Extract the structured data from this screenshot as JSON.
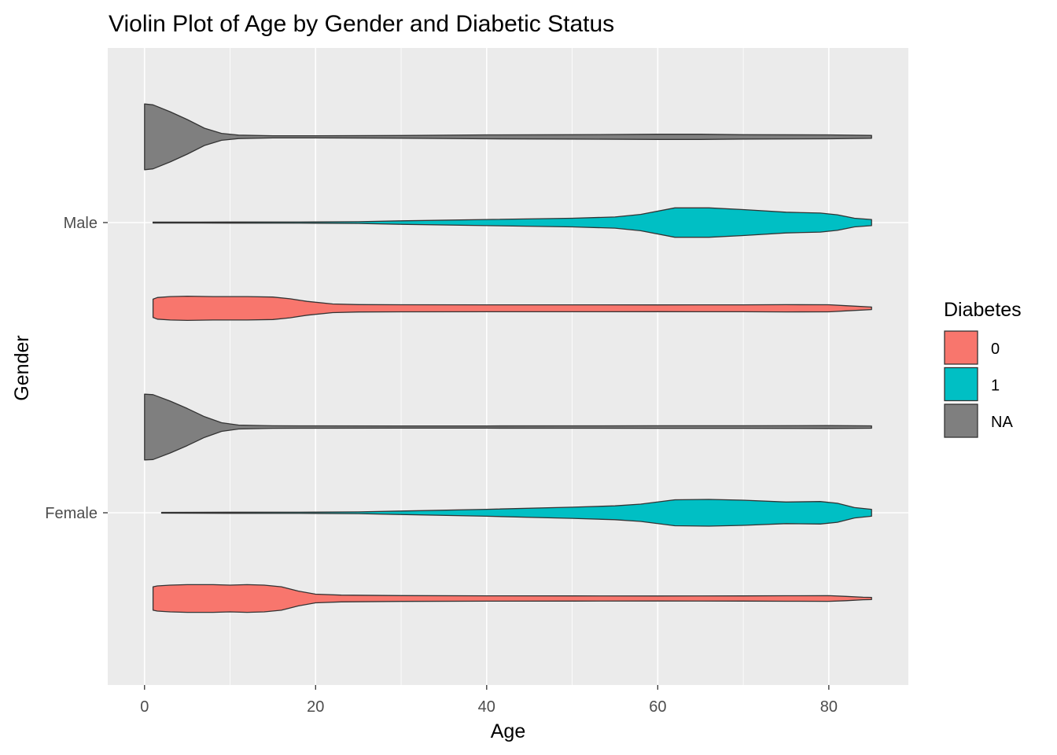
{
  "chart_data": {
    "type": "violin",
    "orientation": "horizontal",
    "title": "Violin Plot of Age by Gender and Diabetic Status",
    "xlabel": "Age",
    "ylabel": "Gender",
    "xlim": [
      -4.3,
      89.3
    ],
    "x_ticks": [
      0,
      20,
      40,
      60,
      80
    ],
    "x_tick_labels": [
      "0",
      "20",
      "40",
      "60",
      "80"
    ],
    "categories": [
      "Female",
      "Male"
    ],
    "grid": true,
    "background": "#ebebeb",
    "legend": {
      "title": "Diabetes",
      "position": "right",
      "entries": [
        {
          "label": "0",
          "color": "#f8766d"
        },
        {
          "label": "1",
          "color": "#00bfc4"
        },
        {
          "label": "NA",
          "color": "#7f7f7f"
        }
      ]
    },
    "violins": [
      {
        "category": "Female",
        "diabetes": "0",
        "color": "#f8766d",
        "profile": [
          [
            1,
            0.27
          ],
          [
            1.5,
            0.29
          ],
          [
            3,
            0.31
          ],
          [
            5,
            0.32
          ],
          [
            8,
            0.32
          ],
          [
            10,
            0.31
          ],
          [
            12,
            0.32
          ],
          [
            14,
            0.31
          ],
          [
            16,
            0.27
          ],
          [
            18,
            0.17
          ],
          [
            20,
            0.1
          ],
          [
            23,
            0.078
          ],
          [
            30,
            0.068
          ],
          [
            40,
            0.062
          ],
          [
            50,
            0.06
          ],
          [
            60,
            0.058
          ],
          [
            70,
            0.06
          ],
          [
            75,
            0.064
          ],
          [
            80,
            0.066
          ],
          [
            82,
            0.05
          ],
          [
            84,
            0.03
          ],
          [
            85,
            0.025
          ]
        ]
      },
      {
        "category": "Female",
        "diabetes": "1",
        "color": "#00bfc4",
        "profile": [
          [
            2,
            0.01
          ],
          [
            10,
            0.012
          ],
          [
            20,
            0.014
          ],
          [
            25,
            0.02
          ],
          [
            30,
            0.04
          ],
          [
            40,
            0.08
          ],
          [
            50,
            0.13
          ],
          [
            55,
            0.16
          ],
          [
            58,
            0.2
          ],
          [
            62,
            0.3
          ],
          [
            66,
            0.31
          ],
          [
            70,
            0.29
          ],
          [
            75,
            0.25
          ],
          [
            79,
            0.26
          ],
          [
            81,
            0.22
          ],
          [
            83,
            0.12
          ],
          [
            85,
            0.08
          ]
        ]
      },
      {
        "category": "Female",
        "diabetes": "NA",
        "color": "#7f7f7f",
        "profile": [
          [
            0,
            0.76
          ],
          [
            1,
            0.75
          ],
          [
            3,
            0.6
          ],
          [
            5,
            0.43
          ],
          [
            7,
            0.24
          ],
          [
            9,
            0.1
          ],
          [
            11,
            0.045
          ],
          [
            15,
            0.03
          ],
          [
            20,
            0.028
          ],
          [
            30,
            0.025
          ],
          [
            40,
            0.026
          ],
          [
            50,
            0.028
          ],
          [
            60,
            0.03
          ],
          [
            70,
            0.03
          ],
          [
            80,
            0.032
          ],
          [
            85,
            0.028
          ]
        ]
      },
      {
        "category": "Male",
        "diabetes": "0",
        "color": "#f8766d",
        "profile": [
          [
            1,
            0.21
          ],
          [
            1.5,
            0.25
          ],
          [
            3,
            0.27
          ],
          [
            5,
            0.28
          ],
          [
            8,
            0.27
          ],
          [
            12,
            0.27
          ],
          [
            15,
            0.26
          ],
          [
            17,
            0.22
          ],
          [
            19,
            0.16
          ],
          [
            22,
            0.1
          ],
          [
            25,
            0.085
          ],
          [
            30,
            0.082
          ],
          [
            40,
            0.08
          ],
          [
            50,
            0.08
          ],
          [
            60,
            0.078
          ],
          [
            70,
            0.08
          ],
          [
            75,
            0.084
          ],
          [
            80,
            0.082
          ],
          [
            82,
            0.06
          ],
          [
            85,
            0.03
          ]
        ]
      },
      {
        "category": "Male",
        "diabetes": "1",
        "color": "#00bfc4",
        "profile": [
          [
            1,
            0.01
          ],
          [
            10,
            0.012
          ],
          [
            20,
            0.014
          ],
          [
            25,
            0.02
          ],
          [
            30,
            0.04
          ],
          [
            40,
            0.07
          ],
          [
            50,
            0.1
          ],
          [
            55,
            0.13
          ],
          [
            58,
            0.19
          ],
          [
            62,
            0.34
          ],
          [
            66,
            0.34
          ],
          [
            70,
            0.3
          ],
          [
            75,
            0.24
          ],
          [
            79,
            0.22
          ],
          [
            81,
            0.18
          ],
          [
            83,
            0.1
          ],
          [
            85,
            0.07
          ]
        ]
      },
      {
        "category": "Male",
        "diabetes": "NA",
        "color": "#7f7f7f",
        "profile": [
          [
            0,
            0.76
          ],
          [
            1,
            0.74
          ],
          [
            3,
            0.58
          ],
          [
            5,
            0.4
          ],
          [
            7,
            0.2
          ],
          [
            9,
            0.08
          ],
          [
            11,
            0.04
          ],
          [
            15,
            0.025
          ],
          [
            20,
            0.025
          ],
          [
            30,
            0.03
          ],
          [
            40,
            0.045
          ],
          [
            50,
            0.05
          ],
          [
            60,
            0.06
          ],
          [
            65,
            0.06
          ],
          [
            70,
            0.05
          ],
          [
            80,
            0.045
          ],
          [
            85,
            0.032
          ]
        ]
      }
    ]
  }
}
